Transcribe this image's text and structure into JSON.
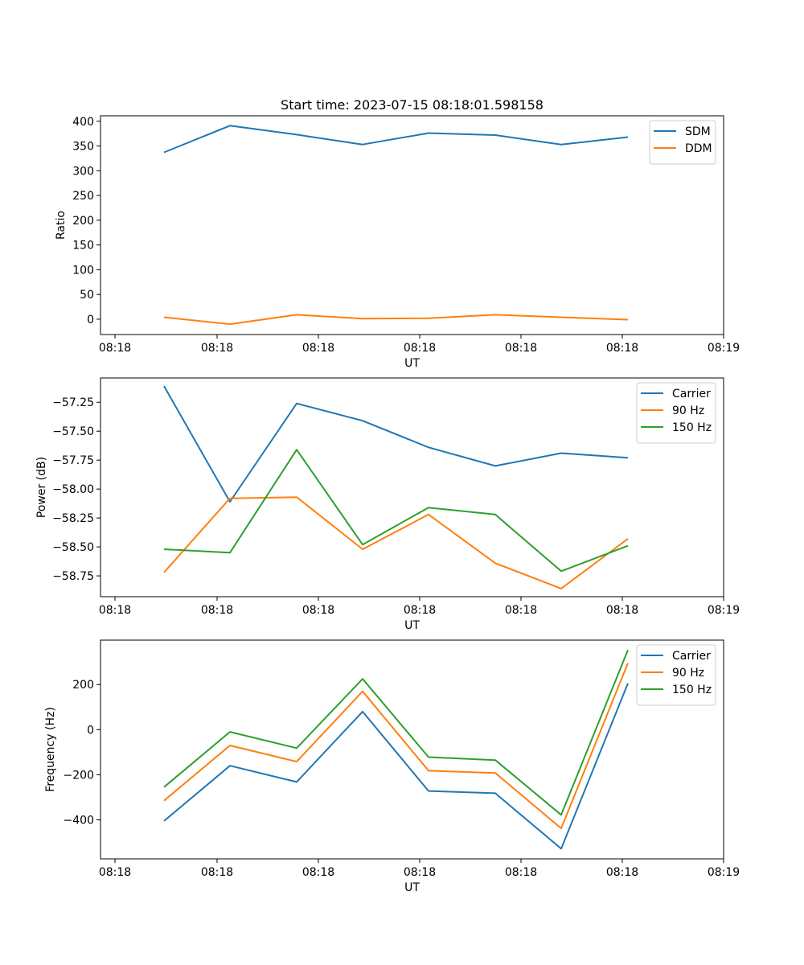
{
  "chart_data": [
    {
      "type": "line",
      "title": "Start time: 2023-07-15 08:18:01.598158",
      "xlabel": "UT",
      "ylabel": "Ratio",
      "xticks": [
        "08:18",
        "08:18",
        "08:18",
        "08:18",
        "08:18",
        "08:18",
        "08:19"
      ],
      "x": [
        0.5,
        1.0,
        1.5,
        2.0,
        2.5,
        3.0,
        3.5,
        4.0
      ],
      "xlim": [
        0,
        4.8
      ],
      "ylim": [
        -31,
        411
      ],
      "yticks": [
        0,
        50,
        100,
        150,
        200,
        250,
        300,
        350,
        400
      ],
      "legend_position": "top-right",
      "series": [
        {
          "name": "SDM",
          "color": "#1f77b4",
          "values": [
            337,
            391,
            373,
            353,
            376,
            372,
            353,
            368
          ]
        },
        {
          "name": "DDM",
          "color": "#ff7f0e",
          "values": [
            4,
            -10,
            9,
            1,
            2,
            9,
            4,
            -1
          ]
        }
      ]
    },
    {
      "type": "line",
      "title": "",
      "xlabel": "UT",
      "ylabel": "Power (dB)",
      "xticks": [
        "08:18",
        "08:18",
        "08:18",
        "08:18",
        "08:18",
        "08:18",
        "08:19"
      ],
      "x": [
        0.5,
        1.0,
        1.5,
        2.0,
        2.5,
        3.0,
        3.5,
        4.0
      ],
      "xlim": [
        0,
        4.8
      ],
      "ylim": [
        -58.93,
        -57.04
      ],
      "yticks": [
        -58.75,
        -58.5,
        -58.25,
        -58.0,
        -57.75,
        -57.5,
        -57.25
      ],
      "ytick_labels": [
        "−58.75",
        "−58.50",
        "−58.25",
        "−58.00",
        "−57.75",
        "−57.50",
        "−57.25"
      ],
      "legend_position": "top-right",
      "series": [
        {
          "name": "Carrier",
          "color": "#1f77b4",
          "values": [
            -57.11,
            -58.11,
            -57.26,
            -57.41,
            -57.64,
            -57.8,
            -57.69,
            -57.73
          ]
        },
        {
          "name": "90 Hz",
          "color": "#ff7f0e",
          "values": [
            -58.72,
            -58.08,
            -58.07,
            -58.52,
            -58.22,
            -58.64,
            -58.86,
            -58.43
          ]
        },
        {
          "name": "150 Hz",
          "color": "#2ca02c",
          "values": [
            -58.52,
            -58.55,
            -57.66,
            -58.48,
            -58.16,
            -58.22,
            -58.71,
            -58.49
          ]
        }
      ]
    },
    {
      "type": "line",
      "title": "",
      "xlabel": "UT",
      "ylabel": "Frequency (Hz)",
      "xticks": [
        "08:18",
        "08:18",
        "08:18",
        "08:18",
        "08:18",
        "08:18",
        "08:19"
      ],
      "x": [
        0.5,
        1.0,
        1.5,
        2.0,
        2.5,
        3.0,
        3.5,
        4.0
      ],
      "xlim": [
        0,
        4.8
      ],
      "ylim": [
        -573,
        397
      ],
      "yticks": [
        -400,
        -200,
        0,
        200
      ],
      "ytick_labels": [
        "−400",
        "−200",
        "0",
        "200"
      ],
      "legend_position": "top-right",
      "series": [
        {
          "name": "Carrier",
          "color": "#1f77b4",
          "values": [
            -405,
            -160,
            -232,
            80,
            -272,
            -282,
            -528,
            205
          ]
        },
        {
          "name": "90 Hz",
          "color": "#ff7f0e",
          "values": [
            -315,
            -70,
            -142,
            170,
            -182,
            -192,
            -438,
            295
          ]
        },
        {
          "name": "150 Hz",
          "color": "#2ca02c",
          "values": [
            -255,
            -10,
            -82,
            225,
            -122,
            -135,
            -378,
            353
          ]
        }
      ]
    }
  ]
}
